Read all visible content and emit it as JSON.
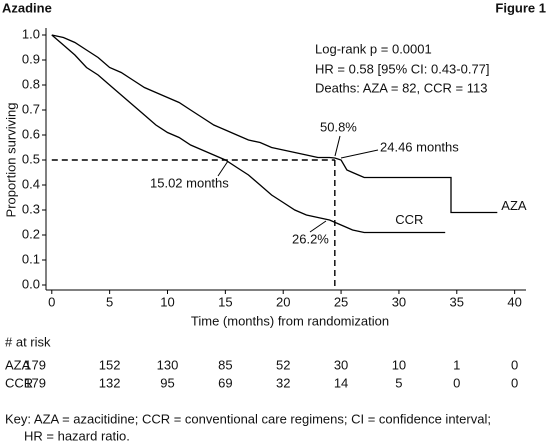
{
  "header": {
    "title": "Azadine",
    "figure": "Figure 1"
  },
  "chart_data": {
    "type": "line",
    "step_label": "Kaplan-Meier",
    "xlabel": "Time (months) from randomization",
    "ylabel": "Proportion surviving",
    "xlim": [
      -0.5,
      41.5
    ],
    "ylim": [
      -0.02,
      1.02
    ],
    "xticks": [
      0,
      5,
      10,
      15,
      20,
      25,
      30,
      35,
      40
    ],
    "yticks": [
      {
        "value": 0,
        "label": "0.0"
      },
      0.1,
      0.2,
      0.3,
      0.4,
      0.5,
      0.6,
      0.7,
      0.8,
      0.9,
      {
        "value": 1,
        "label": "1.0"
      }
    ],
    "series": [
      {
        "name": "AZA",
        "color": "#000000",
        "x": [
          0,
          1,
          2,
          3,
          4,
          5,
          6,
          7,
          8,
          9,
          10,
          11,
          12,
          13,
          14,
          15,
          16,
          17,
          18,
          19,
          20,
          21,
          22,
          23,
          24,
          24.46,
          25,
          25.5,
          26,
          26.5,
          27,
          34.5,
          34.5,
          38.5
        ],
        "values": [
          1.0,
          0.99,
          0.97,
          0.94,
          0.91,
          0.87,
          0.85,
          0.82,
          0.79,
          0.77,
          0.75,
          0.73,
          0.7,
          0.67,
          0.64,
          0.62,
          0.6,
          0.58,
          0.57,
          0.55,
          0.54,
          0.53,
          0.52,
          0.51,
          0.51,
          0.508,
          0.5,
          0.46,
          0.45,
          0.44,
          0.43,
          0.43,
          0.29,
          0.29
        ]
      },
      {
        "name": "CCR",
        "color": "#000000",
        "x": [
          0,
          1,
          2,
          3,
          4,
          5,
          6,
          7,
          8,
          9,
          10,
          11,
          12,
          13,
          14,
          15,
          16,
          17,
          18,
          19,
          20,
          21,
          22,
          23,
          24,
          25,
          26,
          27,
          34
        ],
        "values": [
          1.0,
          0.96,
          0.92,
          0.87,
          0.84,
          0.8,
          0.76,
          0.72,
          0.68,
          0.64,
          0.61,
          0.59,
          0.56,
          0.54,
          0.52,
          0.5,
          0.47,
          0.44,
          0.4,
          0.36,
          0.33,
          0.3,
          0.28,
          0.27,
          0.26,
          0.24,
          0.22,
          0.21,
          0.21
        ]
      }
    ],
    "median_line": {
      "x": 24.46,
      "y": 0.5
    },
    "annotations": [
      "50.8%",
      "24.46 months",
      "15.02 months",
      "26.2%"
    ],
    "stats": [
      "Log-rank p = 0.0001",
      "HR = 0.58 [95% CI: 0.43-0.77]",
      "Deaths: AZA = 82, CCR = 113"
    ],
    "at_risk": {
      "title": "# at risk",
      "times": [
        0,
        5,
        10,
        15,
        20,
        25,
        30,
        35,
        40
      ],
      "rows": [
        {
          "name": "AZA",
          "values": [
            179,
            152,
            130,
            85,
            52,
            30,
            10,
            1,
            0
          ]
        },
        {
          "name": "CCR",
          "values": [
            179,
            132,
            95,
            69,
            32,
            14,
            5,
            0,
            0
          ]
        }
      ]
    }
  },
  "footnote": [
    "Key: AZA = azacitidine; CCR = conventional care regimens; CI = confidence interval;",
    "HR = hazard ratio."
  ]
}
